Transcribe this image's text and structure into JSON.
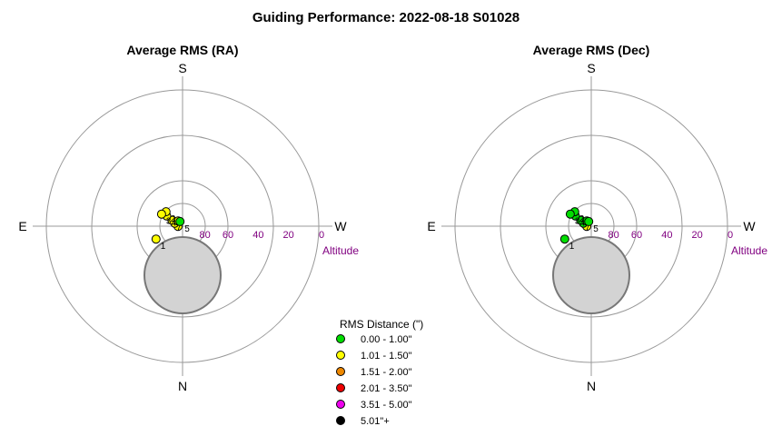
{
  "title": "Guiding Performance: 2022-08-18 S01028",
  "chart_data": [
    {
      "type": "scatter",
      "subtitle": "Average RMS (RA)",
      "directions": {
        "top": "S",
        "left": "E",
        "right": "W",
        "bottom": "N"
      },
      "altitude_rings": [
        80,
        60,
        40,
        20,
        0
      ],
      "altitude_label": "Altitude",
      "points": [
        {
          "label": "1",
          "az": 244,
          "alt": 70.5,
          "class": "yellow"
        },
        {
          "label": "",
          "az": 268,
          "alt": 87.0,
          "class": "yellow"
        },
        {
          "label": "",
          "az": 291,
          "alt": 84.5,
          "class": "yellow"
        },
        {
          "label": "7",
          "az": 299,
          "alt": 82.0,
          "class": "yellow"
        },
        {
          "label": "",
          "az": 319,
          "alt": 85.5,
          "class": "yellow"
        },
        {
          "label": "4",
          "az": 303,
          "alt": 77.5,
          "class": "yellow"
        },
        {
          "label": "2",
          "az": 311,
          "alt": 75.5,
          "class": "yellow"
        },
        {
          "label": "3",
          "az": 300,
          "alt": 74.0,
          "class": "yellow"
        },
        {
          "label": "5",
          "az": 331,
          "alt": 86.5,
          "class": "green"
        }
      ]
    },
    {
      "type": "scatter",
      "subtitle": "Average RMS (Dec)",
      "directions": {
        "top": "S",
        "left": "E",
        "right": "W",
        "bottom": "N"
      },
      "altitude_rings": [
        80,
        60,
        40,
        20,
        0
      ],
      "altitude_label": "Altitude",
      "points": [
        {
          "label": "1",
          "az": 244,
          "alt": 70.5,
          "class": "green"
        },
        {
          "label": "",
          "az": 268,
          "alt": 87.0,
          "class": "yellow"
        },
        {
          "label": "",
          "az": 291,
          "alt": 84.5,
          "class": "green"
        },
        {
          "label": "7",
          "az": 299,
          "alt": 82.0,
          "class": "green"
        },
        {
          "label": "",
          "az": 319,
          "alt": 85.5,
          "class": "green"
        },
        {
          "label": "4",
          "az": 303,
          "alt": 77.5,
          "class": "green"
        },
        {
          "label": "2",
          "az": 311,
          "alt": 75.5,
          "class": "green"
        },
        {
          "label": "3",
          "az": 300,
          "alt": 74.0,
          "class": "green"
        },
        {
          "label": "5",
          "az": 331,
          "alt": 86.5,
          "class": "green"
        }
      ]
    }
  ],
  "legend": {
    "title": "RMS Distance (\")",
    "items": [
      {
        "key": "green",
        "color": "#00dd00",
        "label": "0.00 - 1.00\""
      },
      {
        "key": "yellow",
        "color": "#ffff00",
        "label": "1.01 - 1.50\""
      },
      {
        "key": "orange",
        "color": "#ee8800",
        "label": "1.51 - 2.00\""
      },
      {
        "key": "red",
        "color": "#ee0000",
        "label": "2.01 - 3.50\""
      },
      {
        "key": "magenta",
        "color": "#ee00ee",
        "label": "3.51 - 5.00\""
      },
      {
        "key": "black",
        "color": "#000000",
        "label": "5.01\"+"
      }
    ]
  }
}
